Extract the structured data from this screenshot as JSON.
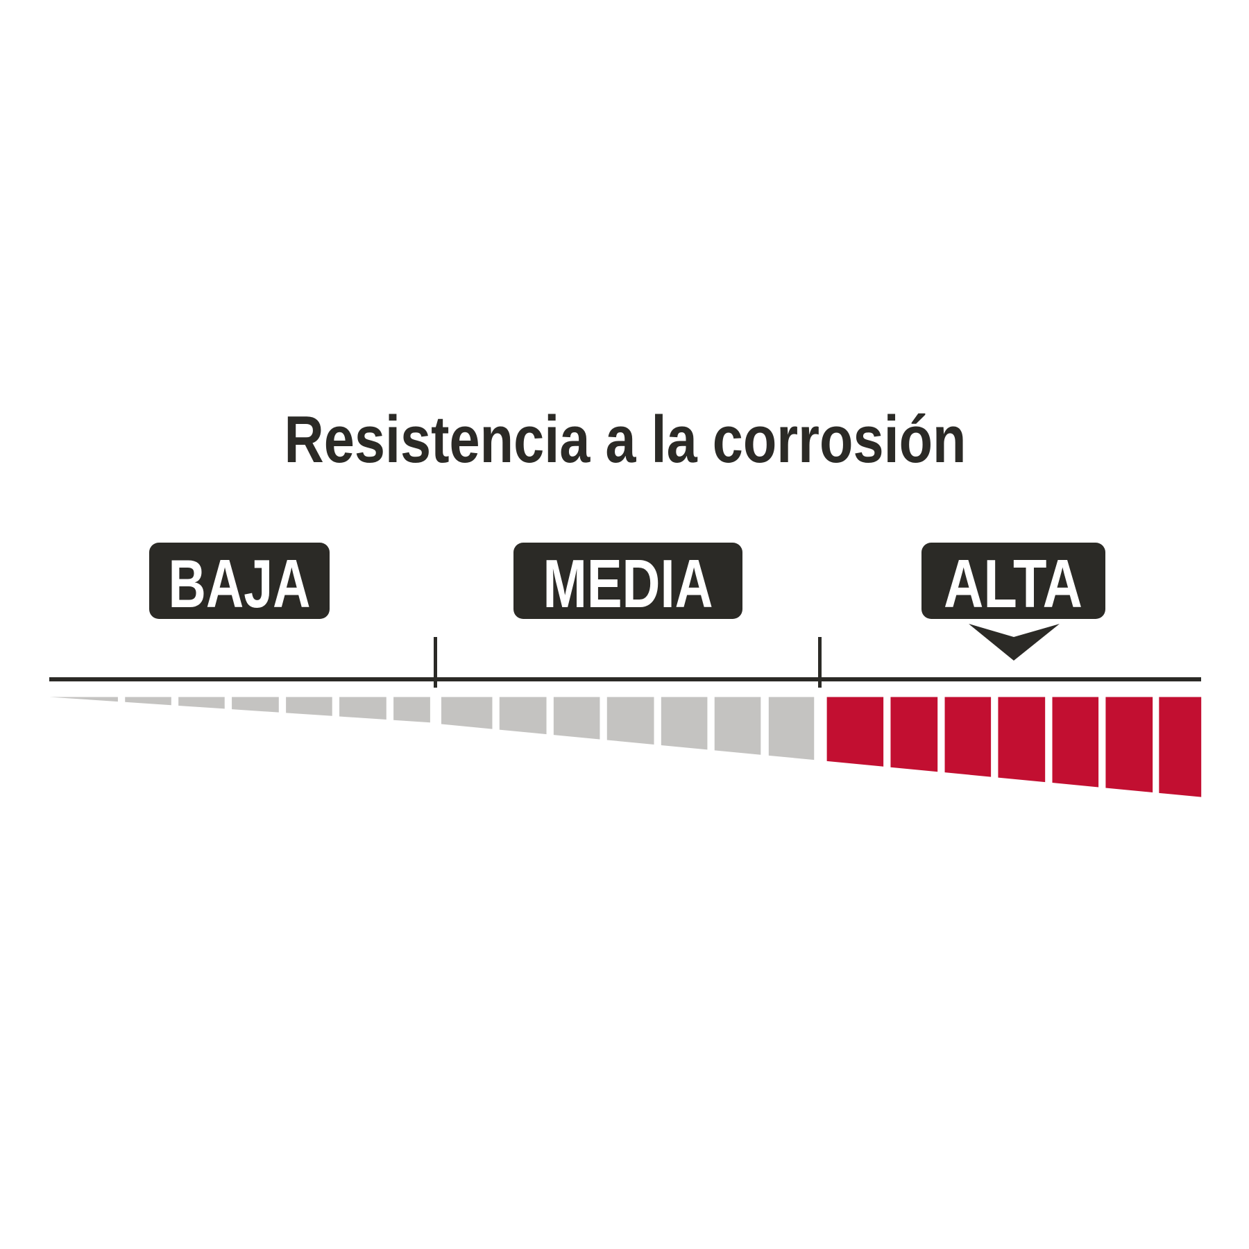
{
  "title": "Resistencia a la corrosión",
  "levels": [
    {
      "label": "BAJA"
    },
    {
      "label": "MEDIA"
    },
    {
      "label": "ALTA"
    }
  ],
  "selected_level": "ALTA",
  "scale": {
    "inactive_segments": 14,
    "active_segments": 7
  },
  "colors": {
    "dark": "#2b2a26",
    "inactive": "#c4c3c1",
    "active": "#c20f31",
    "tag_text": "#ffffff",
    "background": "#ffffff"
  }
}
